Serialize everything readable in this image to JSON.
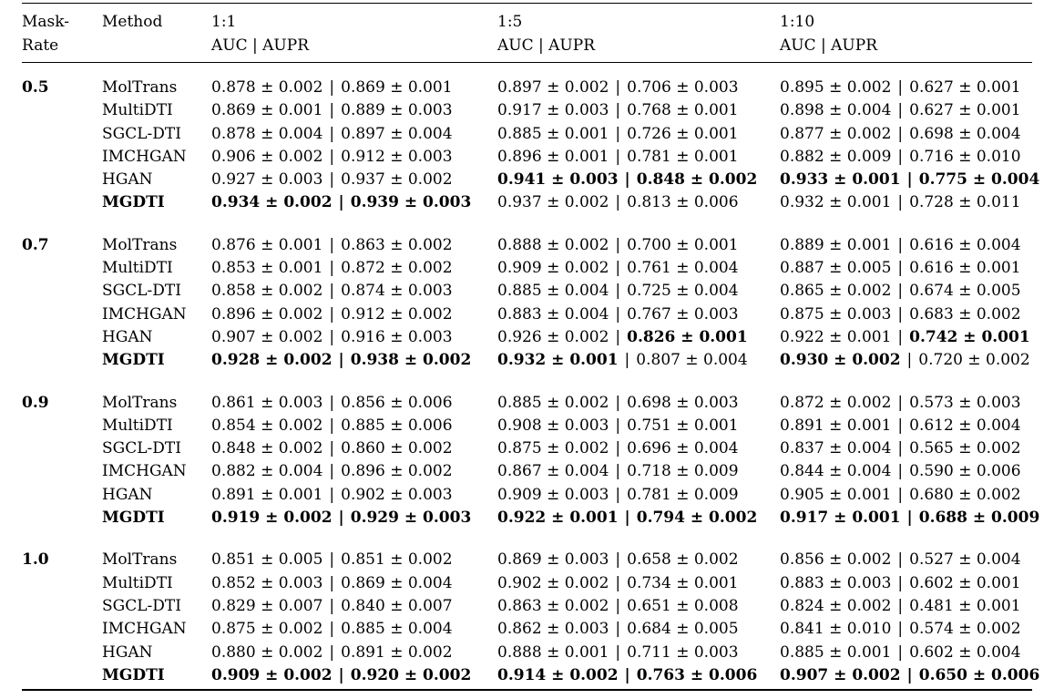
{
  "colors": {
    "text": "#000000",
    "background": "#ffffff"
  },
  "table": {
    "value_separator": "|",
    "header": {
      "mask_line1": "Mask-",
      "mask_line2": "Rate",
      "method": "Method",
      "ratio_cols": [
        {
          "ratio": "1:1",
          "metrics": "AUC | AUPR"
        },
        {
          "ratio": "1:5",
          "metrics": "AUC | AUPR"
        },
        {
          "ratio": "1:10",
          "metrics": "AUC | AUPR"
        }
      ]
    },
    "groups": [
      {
        "mask_rate": "0.5",
        "rows": [
          {
            "method": "MolTrans",
            "method_bold": false,
            "cells": [
              {
                "auc": "0.878 ± 0.002",
                "aupr": "0.869 ± 0.001",
                "auc_bold": false,
                "aupr_bold": false
              },
              {
                "auc": "0.897 ± 0.002",
                "aupr": "0.706 ± 0.003",
                "auc_bold": false,
                "aupr_bold": false
              },
              {
                "auc": "0.895 ± 0.002",
                "aupr": "0.627 ± 0.001",
                "auc_bold": false,
                "aupr_bold": false
              }
            ]
          },
          {
            "method": "MultiDTI",
            "method_bold": false,
            "cells": [
              {
                "auc": "0.869 ± 0.001",
                "aupr": "0.889 ± 0.003",
                "auc_bold": false,
                "aupr_bold": false
              },
              {
                "auc": "0.917 ± 0.003",
                "aupr": "0.768 ± 0.001",
                "auc_bold": false,
                "aupr_bold": false
              },
              {
                "auc": "0.898 ± 0.004",
                "aupr": "0.627 ± 0.001",
                "auc_bold": false,
                "aupr_bold": false
              }
            ]
          },
          {
            "method": "SGCL-DTI",
            "method_bold": false,
            "cells": [
              {
                "auc": "0.878 ± 0.004",
                "aupr": "0.897 ± 0.004",
                "auc_bold": false,
                "aupr_bold": false
              },
              {
                "auc": "0.885 ± 0.001",
                "aupr": "0.726 ± 0.001",
                "auc_bold": false,
                "aupr_bold": false
              },
              {
                "auc": "0.877 ± 0.002",
                "aupr": "0.698 ± 0.004",
                "auc_bold": false,
                "aupr_bold": false
              }
            ]
          },
          {
            "method": "IMCHGAN",
            "method_bold": false,
            "cells": [
              {
                "auc": "0.906 ± 0.002",
                "aupr": "0.912 ± 0.003",
                "auc_bold": false,
                "aupr_bold": false
              },
              {
                "auc": "0.896 ± 0.001",
                "aupr": "0.781 ± 0.001",
                "auc_bold": false,
                "aupr_bold": false
              },
              {
                "auc": "0.882 ± 0.009",
                "aupr": "0.716 ± 0.010",
                "auc_bold": false,
                "aupr_bold": false
              }
            ]
          },
          {
            "method": "HGAN",
            "method_bold": false,
            "cells": [
              {
                "auc": "0.927 ± 0.003",
                "aupr": "0.937 ± 0.002",
                "auc_bold": false,
                "aupr_bold": false
              },
              {
                "auc": "0.941 ± 0.003",
                "aupr": "0.848 ± 0.002",
                "auc_bold": true,
                "aupr_bold": true
              },
              {
                "auc": "0.933 ± 0.001",
                "aupr": "0.775 ± 0.004",
                "auc_bold": true,
                "aupr_bold": true
              }
            ]
          },
          {
            "method": "MGDTI",
            "method_bold": true,
            "cells": [
              {
                "auc": "0.934 ± 0.002",
                "aupr": "0.939 ± 0.003",
                "auc_bold": true,
                "aupr_bold": true
              },
              {
                "auc": "0.937 ± 0.002",
                "aupr": "0.813 ± 0.006",
                "auc_bold": false,
                "aupr_bold": false
              },
              {
                "auc": "0.932 ± 0.001",
                "aupr": "0.728 ± 0.011",
                "auc_bold": false,
                "aupr_bold": false
              }
            ]
          }
        ]
      },
      {
        "mask_rate": "0.7",
        "rows": [
          {
            "method": "MolTrans",
            "method_bold": false,
            "cells": [
              {
                "auc": "0.876 ± 0.001",
                "aupr": "0.863 ± 0.002",
                "auc_bold": false,
                "aupr_bold": false
              },
              {
                "auc": "0.888 ± 0.002",
                "aupr": "0.700 ± 0.001",
                "auc_bold": false,
                "aupr_bold": false
              },
              {
                "auc": "0.889 ± 0.001",
                "aupr": "0.616 ± 0.004",
                "auc_bold": false,
                "aupr_bold": false
              }
            ]
          },
          {
            "method": "MultiDTI",
            "method_bold": false,
            "cells": [
              {
                "auc": "0.853 ± 0.001",
                "aupr": "0.872 ± 0.002",
                "auc_bold": false,
                "aupr_bold": false
              },
              {
                "auc": "0.909 ± 0.002",
                "aupr": "0.761 ± 0.004",
                "auc_bold": false,
                "aupr_bold": false
              },
              {
                "auc": "0.887 ± 0.005",
                "aupr": "0.616 ± 0.001",
                "auc_bold": false,
                "aupr_bold": false
              }
            ]
          },
          {
            "method": "SGCL-DTI",
            "method_bold": false,
            "cells": [
              {
                "auc": "0.858 ± 0.002",
                "aupr": "0.874 ± 0.003",
                "auc_bold": false,
                "aupr_bold": false
              },
              {
                "auc": "0.885 ± 0.004",
                "aupr": "0.725 ± 0.004",
                "auc_bold": false,
                "aupr_bold": false
              },
              {
                "auc": "0.865 ± 0.002",
                "aupr": "0.674 ± 0.005",
                "auc_bold": false,
                "aupr_bold": false
              }
            ]
          },
          {
            "method": "IMCHGAN",
            "method_bold": false,
            "cells": [
              {
                "auc": "0.896 ± 0.002",
                "aupr": "0.912 ± 0.002",
                "auc_bold": false,
                "aupr_bold": false
              },
              {
                "auc": "0.883 ± 0.004",
                "aupr": "0.767 ± 0.003",
                "auc_bold": false,
                "aupr_bold": false
              },
              {
                "auc": "0.875 ± 0.003",
                "aupr": "0.683 ± 0.002",
                "auc_bold": false,
                "aupr_bold": false
              }
            ]
          },
          {
            "method": "HGAN",
            "method_bold": false,
            "cells": [
              {
                "auc": "0.907 ± 0.002",
                "aupr": "0.916 ± 0.003",
                "auc_bold": false,
                "aupr_bold": false
              },
              {
                "auc": "0.926 ± 0.002",
                "aupr": "0.826 ± 0.001",
                "auc_bold": false,
                "aupr_bold": true
              },
              {
                "auc": "0.922 ± 0.001",
                "aupr": "0.742 ± 0.001",
                "auc_bold": false,
                "aupr_bold": true
              }
            ]
          },
          {
            "method": "MGDTI",
            "method_bold": true,
            "cells": [
              {
                "auc": "0.928 ± 0.002",
                "aupr": "0.938 ± 0.002",
                "auc_bold": true,
                "aupr_bold": true
              },
              {
                "auc": "0.932 ± 0.001",
                "aupr": "0.807 ± 0.004",
                "auc_bold": true,
                "aupr_bold": false
              },
              {
                "auc": "0.930 ± 0.002",
                "aupr": "0.720 ± 0.002",
                "auc_bold": true,
                "aupr_bold": false
              }
            ]
          }
        ]
      },
      {
        "mask_rate": "0.9",
        "rows": [
          {
            "method": "MolTrans",
            "method_bold": false,
            "cells": [
              {
                "auc": "0.861 ± 0.003",
                "aupr": "0.856 ± 0.006",
                "auc_bold": false,
                "aupr_bold": false
              },
              {
                "auc": "0.885 ± 0.002",
                "aupr": "0.698 ± 0.003",
                "auc_bold": false,
                "aupr_bold": false
              },
              {
                "auc": "0.872 ± 0.002",
                "aupr": "0.573 ± 0.003",
                "auc_bold": false,
                "aupr_bold": false
              }
            ]
          },
          {
            "method": "MultiDTI",
            "method_bold": false,
            "cells": [
              {
                "auc": "0.854 ± 0.002",
                "aupr": "0.885 ± 0.006",
                "auc_bold": false,
                "aupr_bold": false
              },
              {
                "auc": "0.908 ± 0.003",
                "aupr": "0.751 ± 0.001",
                "auc_bold": false,
                "aupr_bold": false
              },
              {
                "auc": "0.891 ± 0.001",
                "aupr": "0.612 ± 0.004",
                "auc_bold": false,
                "aupr_bold": false
              }
            ]
          },
          {
            "method": "SGCL-DTI",
            "method_bold": false,
            "cells": [
              {
                "auc": "0.848 ± 0.002",
                "aupr": "0.860 ± 0.002",
                "auc_bold": false,
                "aupr_bold": false
              },
              {
                "auc": "0.875 ± 0.002",
                "aupr": "0.696 ± 0.004",
                "auc_bold": false,
                "aupr_bold": false
              },
              {
                "auc": "0.837 ± 0.004",
                "aupr": "0.565 ± 0.002",
                "auc_bold": false,
                "aupr_bold": false
              }
            ]
          },
          {
            "method": "IMCHGAN",
            "method_bold": false,
            "cells": [
              {
                "auc": "0.882 ± 0.004",
                "aupr": "0.896 ± 0.002",
                "auc_bold": false,
                "aupr_bold": false
              },
              {
                "auc": "0.867 ± 0.004",
                "aupr": "0.718 ± 0.009",
                "auc_bold": false,
                "aupr_bold": false
              },
              {
                "auc": "0.844 ± 0.004",
                "aupr": "0.590 ± 0.006",
                "auc_bold": false,
                "aupr_bold": false
              }
            ]
          },
          {
            "method": "HGAN",
            "method_bold": false,
            "cells": [
              {
                "auc": "0.891 ± 0.001",
                "aupr": "0.902 ± 0.003",
                "auc_bold": false,
                "aupr_bold": false
              },
              {
                "auc": "0.909 ± 0.003",
                "aupr": "0.781 ± 0.009",
                "auc_bold": false,
                "aupr_bold": false
              },
              {
                "auc": "0.905 ± 0.001",
                "aupr": "0.680 ± 0.002",
                "auc_bold": false,
                "aupr_bold": false
              }
            ]
          },
          {
            "method": "MGDTI",
            "method_bold": true,
            "cells": [
              {
                "auc": "0.919 ± 0.002",
                "aupr": "0.929 ± 0.003",
                "auc_bold": true,
                "aupr_bold": true
              },
              {
                "auc": "0.922 ± 0.001",
                "aupr": "0.794 ± 0.002",
                "auc_bold": true,
                "aupr_bold": true
              },
              {
                "auc": "0.917 ± 0.001",
                "aupr": "0.688 ± 0.009",
                "auc_bold": true,
                "aupr_bold": true
              }
            ]
          }
        ]
      },
      {
        "mask_rate": "1.0",
        "rows": [
          {
            "method": "MolTrans",
            "method_bold": false,
            "cells": [
              {
                "auc": "0.851 ± 0.005",
                "aupr": "0.851 ± 0.002",
                "auc_bold": false,
                "aupr_bold": false
              },
              {
                "auc": "0.869 ± 0.003",
                "aupr": "0.658 ± 0.002",
                "auc_bold": false,
                "aupr_bold": false
              },
              {
                "auc": "0.856 ± 0.002",
                "aupr": "0.527 ± 0.004",
                "auc_bold": false,
                "aupr_bold": false
              }
            ]
          },
          {
            "method": "MultiDTI",
            "method_bold": false,
            "cells": [
              {
                "auc": "0.852 ± 0.003",
                "aupr": "0.869 ± 0.004",
                "auc_bold": false,
                "aupr_bold": false
              },
              {
                "auc": "0.902 ± 0.002",
                "aupr": "0.734 ± 0.001",
                "auc_bold": false,
                "aupr_bold": false
              },
              {
                "auc": "0.883 ± 0.003",
                "aupr": "0.602 ± 0.001",
                "auc_bold": false,
                "aupr_bold": false
              }
            ]
          },
          {
            "method": "SGCL-DTI",
            "method_bold": false,
            "cells": [
              {
                "auc": "0.829 ± 0.007",
                "aupr": "0.840 ± 0.007",
                "auc_bold": false,
                "aupr_bold": false
              },
              {
                "auc": "0.863 ± 0.002",
                "aupr": "0.651 ± 0.008",
                "auc_bold": false,
                "aupr_bold": false
              },
              {
                "auc": "0.824 ± 0.002",
                "aupr": "0.481 ± 0.001",
                "auc_bold": false,
                "aupr_bold": false
              }
            ]
          },
          {
            "method": "IMCHGAN",
            "method_bold": false,
            "cells": [
              {
                "auc": "0.875 ± 0.002",
                "aupr": "0.885 ± 0.004",
                "auc_bold": false,
                "aupr_bold": false
              },
              {
                "auc": "0.862 ± 0.003",
                "aupr": "0.684 ± 0.005",
                "auc_bold": false,
                "aupr_bold": false
              },
              {
                "auc": "0.841 ± 0.010",
                "aupr": "0.574 ± 0.002",
                "auc_bold": false,
                "aupr_bold": false
              }
            ]
          },
          {
            "method": "HGAN",
            "method_bold": false,
            "cells": [
              {
                "auc": "0.880 ± 0.002",
                "aupr": "0.891 ± 0.002",
                "auc_bold": false,
                "aupr_bold": false
              },
              {
                "auc": "0.888 ± 0.001",
                "aupr": "0.711 ± 0.003",
                "auc_bold": false,
                "aupr_bold": false
              },
              {
                "auc": "0.885 ± 0.001",
                "aupr": "0.602 ± 0.004",
                "auc_bold": false,
                "aupr_bold": false
              }
            ]
          },
          {
            "method": "MGDTI",
            "method_bold": true,
            "cells": [
              {
                "auc": "0.909 ± 0.002",
                "aupr": "0.920 ± 0.002",
                "auc_bold": true,
                "aupr_bold": true
              },
              {
                "auc": "0.914 ± 0.002",
                "aupr": "0.763 ± 0.006",
                "auc_bold": true,
                "aupr_bold": true
              },
              {
                "auc": "0.907 ± 0.002",
                "aupr": "0.650 ± 0.006",
                "auc_bold": true,
                "aupr_bold": true
              }
            ]
          }
        ]
      }
    ]
  }
}
